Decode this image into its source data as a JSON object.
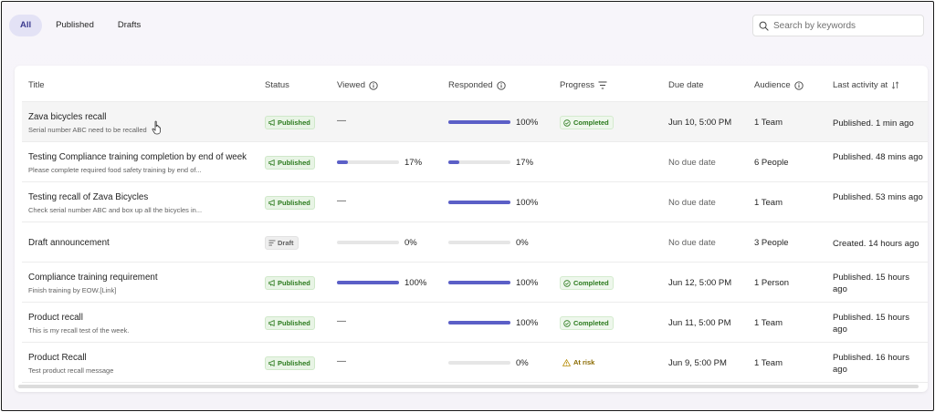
{
  "filters": {
    "tabs": [
      {
        "label": "All",
        "active": true
      },
      {
        "label": "Published",
        "active": false
      },
      {
        "label": "Drafts",
        "active": false
      }
    ]
  },
  "search": {
    "placeholder": "Search by keywords",
    "value": "",
    "icon": "search-icon"
  },
  "table": {
    "headers": {
      "title": "Title",
      "status": "Status",
      "viewed": "Viewed",
      "responded": "Responded",
      "progress": "Progress",
      "due_date": "Due date",
      "audience": "Audience",
      "last_activity": "Last activity at"
    },
    "rows": [
      {
        "title": "Zava bicycles recall",
        "subtitle": "Serial number ABC need to be recalled",
        "status": "Published",
        "viewed": "—",
        "viewed_pct": null,
        "responded": "100%",
        "responded_pct": 100,
        "progress": "Completed",
        "due_date": "Jun 10, 5:00 PM",
        "audience": "1 Team",
        "last_activity": "Published. 1 min ago"
      },
      {
        "title": "Testing Compliance training completion by end of week",
        "subtitle": "Please complete required food safety training by end of...",
        "status": "Published",
        "viewed": "17%",
        "viewed_pct": 17,
        "responded": "17%",
        "responded_pct": 17,
        "progress": "",
        "due_date": "No due date",
        "audience": "6 People",
        "last_activity": "Published. 48 mins ago"
      },
      {
        "title": "Testing recall of Zava Bicycles",
        "subtitle": "Check serial number ABC and box up all the bicycles in...",
        "status": "Published",
        "viewed": "—",
        "viewed_pct": null,
        "responded": "100%",
        "responded_pct": 100,
        "progress": "",
        "due_date": "No due date",
        "audience": "1 Team",
        "last_activity": "Published. 53 mins ago"
      },
      {
        "title": "Draft announcement",
        "subtitle": "",
        "status": "Draft",
        "viewed": "0%",
        "viewed_pct": 0,
        "responded": "0%",
        "responded_pct": 0,
        "progress": "",
        "due_date": "No due date",
        "audience": "3 People",
        "last_activity": "Created. 14 hours ago"
      },
      {
        "title": "Compliance training requirement",
        "subtitle": "Finish training by EOW.[Link]",
        "status": "Published",
        "viewed": "100%",
        "viewed_pct": 100,
        "responded": "100%",
        "responded_pct": 100,
        "progress": "Completed",
        "due_date": "Jun 12, 5:00 PM",
        "audience": "1 Person",
        "last_activity": "Published. 15 hours ago"
      },
      {
        "title": "Product recall",
        "subtitle": "This is my recall test of the week.",
        "status": "Published",
        "viewed": "—",
        "viewed_pct": null,
        "responded": "100%",
        "responded_pct": 100,
        "progress": "Completed",
        "due_date": "Jun 11, 5:00 PM",
        "audience": "1 Team",
        "last_activity": "Published. 15 hours ago"
      },
      {
        "title": "Product Recall",
        "subtitle": "Test product recall message",
        "status": "Published",
        "viewed": "—",
        "viewed_pct": null,
        "responded": "0%",
        "responded_pct": 0,
        "progress": "At risk",
        "due_date": "Jun 9, 5:00 PM",
        "audience": "1 Team",
        "last_activity": "Published. 16 hours ago"
      }
    ]
  },
  "colors": {
    "accent": "#5b5fc7",
    "published": "#2b7a1d",
    "at_risk": "#8a6a00",
    "track": "#e6e6e6"
  }
}
